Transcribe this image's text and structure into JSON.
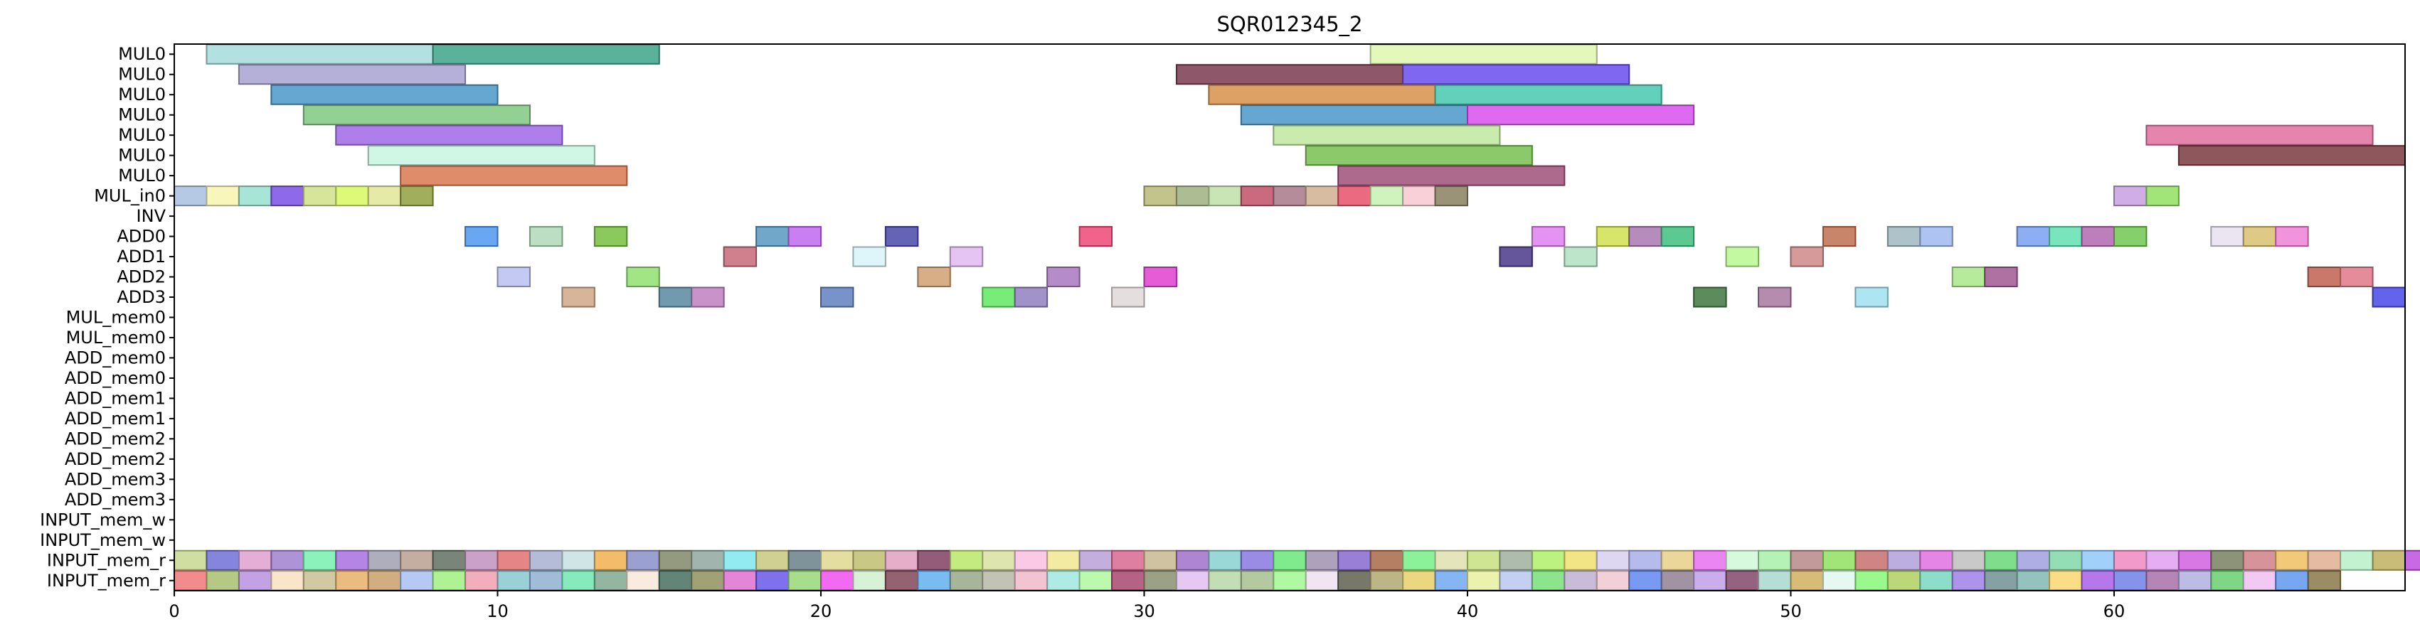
{
  "chart_data": {
    "type": "gantt",
    "title": "SQR012345_2",
    "xlim": [
      0,
      69
    ],
    "xticks": [
      0,
      10,
      20,
      30,
      40,
      50,
      60
    ],
    "rows": [
      "MUL0",
      "MUL0",
      "MUL0",
      "MUL0",
      "MUL0",
      "MUL0",
      "MUL0",
      "MUL_in0",
      "INV",
      "ADD0",
      "ADD1",
      "ADD2",
      "ADD3",
      "MUL_mem0",
      "MUL_mem0",
      "ADD_mem0",
      "ADD_mem0",
      "ADD_mem1",
      "ADD_mem1",
      "ADD_mem2",
      "ADD_mem2",
      "ADD_mem3",
      "ADD_mem3",
      "INPUT_mem_w",
      "INPUT_mem_w",
      "INPUT_mem_r",
      "INPUT_mem_r"
    ],
    "tasks": [
      {
        "row": 0,
        "start": 1,
        "end": 8,
        "color": "#a6dcdc"
      },
      {
        "row": 0,
        "start": 8,
        "end": 15,
        "color": "#3ea58a"
      },
      {
        "row": 0,
        "start": 37,
        "end": 44,
        "color": "#e0f7b0"
      },
      {
        "row": 1,
        "start": 2,
        "end": 9,
        "color": "#a8a2d0"
      },
      {
        "row": 1,
        "start": 31,
        "end": 38,
        "color": "#7a3a50"
      },
      {
        "row": 1,
        "start": 38,
        "end": 45,
        "color": "#6a4cf0"
      },
      {
        "row": 2,
        "start": 3,
        "end": 10,
        "color": "#4a98c8"
      },
      {
        "row": 2,
        "start": 32,
        "end": 39,
        "color": "#d8904a"
      },
      {
        "row": 2,
        "start": 39,
        "end": 46,
        "color": "#48c8b0"
      },
      {
        "row": 3,
        "start": 4,
        "end": 11,
        "color": "#80c880"
      },
      {
        "row": 3,
        "start": 33,
        "end": 40,
        "color": "#4a98c8"
      },
      {
        "row": 3,
        "start": 40,
        "end": 47,
        "color": "#d850f0"
      },
      {
        "row": 4,
        "start": 5,
        "end": 12,
        "color": "#a068e8"
      },
      {
        "row": 4,
        "start": 34,
        "end": 41,
        "color": "#c0e8a0"
      },
      {
        "row": 4,
        "start": 61,
        "end": 68,
        "color": "#e070a0"
      },
      {
        "row": 5,
        "start": 6,
        "end": 13,
        "color": "#c8f4e0"
      },
      {
        "row": 5,
        "start": 35,
        "end": 42,
        "color": "#78c050"
      },
      {
        "row": 5,
        "start": 62,
        "end": 69,
        "color": "#7a3a40"
      },
      {
        "row": 6,
        "start": 7,
        "end": 14,
        "color": "#d87850"
      },
      {
        "row": 6,
        "start": 36,
        "end": 43,
        "color": "#a05078"
      },
      {
        "row": 7,
        "start": 0,
        "end": 1,
        "color": "#a8c0e0"
      },
      {
        "row": 7,
        "start": 1,
        "end": 2,
        "color": "#f8f4b0"
      },
      {
        "row": 7,
        "start": 2,
        "end": 3,
        "color": "#98e0d0"
      },
      {
        "row": 7,
        "start": 3,
        "end": 4,
        "color": "#7a50e8"
      },
      {
        "row": 7,
        "start": 4,
        "end": 5,
        "color": "#d0e088"
      },
      {
        "row": 7,
        "start": 5,
        "end": 6,
        "color": "#d8f860"
      },
      {
        "row": 7,
        "start": 6,
        "end": 7,
        "color": "#e0e898"
      },
      {
        "row": 7,
        "start": 7,
        "end": 8,
        "color": "#90a040"
      },
      {
        "row": 7,
        "start": 30,
        "end": 31,
        "color": "#b8b878"
      },
      {
        "row": 7,
        "start": 31,
        "end": 32,
        "color": "#a0b080"
      },
      {
        "row": 7,
        "start": 32,
        "end": 33,
        "color": "#c0e0a8"
      },
      {
        "row": 7,
        "start": 33,
        "end": 34,
        "color": "#c05068"
      },
      {
        "row": 7,
        "start": 34,
        "end": 35,
        "color": "#a87888"
      },
      {
        "row": 7,
        "start": 35,
        "end": 36,
        "color": "#d0b090"
      },
      {
        "row": 7,
        "start": 36,
        "end": 37,
        "color": "#e85068"
      },
      {
        "row": 7,
        "start": 37,
        "end": 38,
        "color": "#c8f0b0"
      },
      {
        "row": 7,
        "start": 38,
        "end": 39,
        "color": "#f8c8d0"
      },
      {
        "row": 7,
        "start": 39,
        "end": 40,
        "color": "#888060"
      },
      {
        "row": 7,
        "start": 60,
        "end": 61,
        "color": "#c8a0e0"
      },
      {
        "row": 7,
        "start": 61,
        "end": 62,
        "color": "#90e060"
      },
      {
        "row": 9,
        "start": 9,
        "end": 10,
        "color": "#5098f0"
      },
      {
        "row": 9,
        "start": 11,
        "end": 12,
        "color": "#b0d8b8"
      },
      {
        "row": 9,
        "start": 13,
        "end": 14,
        "color": "#78c040"
      },
      {
        "row": 9,
        "start": 18,
        "end": 19,
        "color": "#5898c0"
      },
      {
        "row": 9,
        "start": 19,
        "end": 20,
        "color": "#c068f0"
      },
      {
        "row": 9,
        "start": 22,
        "end": 23,
        "color": "#4a48a8"
      },
      {
        "row": 9,
        "start": 28,
        "end": 29,
        "color": "#f04878"
      },
      {
        "row": 9,
        "start": 42,
        "end": 43,
        "color": "#e080f0"
      },
      {
        "row": 9,
        "start": 44,
        "end": 45,
        "color": "#d0e050"
      },
      {
        "row": 9,
        "start": 45,
        "end": 46,
        "color": "#a878b0"
      },
      {
        "row": 9,
        "start": 46,
        "end": 47,
        "color": "#40c080"
      },
      {
        "row": 9,
        "start": 51,
        "end": 52,
        "color": "#c07050"
      },
      {
        "row": 9,
        "start": 53,
        "end": 54,
        "color": "#a0b8c0"
      },
      {
        "row": 9,
        "start": 54,
        "end": 55,
        "color": "#a0b8f0"
      },
      {
        "row": 9,
        "start": 57,
        "end": 58,
        "color": "#78a0f0"
      },
      {
        "row": 9,
        "start": 58,
        "end": 59,
        "color": "#60e0b0"
      },
      {
        "row": 9,
        "start": 59,
        "end": 60,
        "color": "#b068b0"
      },
      {
        "row": 9,
        "start": 60,
        "end": 61,
        "color": "#70c850"
      },
      {
        "row": 9,
        "start": 63,
        "end": 64,
        "color": "#e8e0f0"
      },
      {
        "row": 9,
        "start": 64,
        "end": 65,
        "color": "#d8c070"
      },
      {
        "row": 9,
        "start": 65,
        "end": 66,
        "color": "#f080d8"
      },
      {
        "row": 10,
        "start": 17,
        "end": 18,
        "color": "#c86878"
      },
      {
        "row": 10,
        "start": 21,
        "end": 22,
        "color": "#d8f4f8"
      },
      {
        "row": 10,
        "start": 24,
        "end": 25,
        "color": "#e0b8f0"
      },
      {
        "row": 10,
        "start": 41,
        "end": 42,
        "color": "#4a3888"
      },
      {
        "row": 10,
        "start": 43,
        "end": 44,
        "color": "#b0e0c0"
      },
      {
        "row": 10,
        "start": 48,
        "end": 49,
        "color": "#b8f890"
      },
      {
        "row": 10,
        "start": 50,
        "end": 51,
        "color": "#d08888"
      },
      {
        "row": 11,
        "start": 10,
        "end": 11,
        "color": "#b8c0f0"
      },
      {
        "row": 11,
        "start": 14,
        "end": 15,
        "color": "#90e070"
      },
      {
        "row": 11,
        "start": 23,
        "end": 24,
        "color": "#d0a070"
      },
      {
        "row": 11,
        "start": 27,
        "end": 28,
        "color": "#a878c0"
      },
      {
        "row": 11,
        "start": 30,
        "end": 31,
        "color": "#e040d0"
      },
      {
        "row": 11,
        "start": 55,
        "end": 56,
        "color": "#a8e888"
      },
      {
        "row": 11,
        "start": 56,
        "end": 57,
        "color": "#a05890"
      },
      {
        "row": 11,
        "start": 66,
        "end": 67,
        "color": "#c06050"
      },
      {
        "row": 11,
        "start": 67,
        "end": 68,
        "color": "#e07888"
      },
      {
        "row": 12,
        "start": 12,
        "end": 13,
        "color": "#d0a888"
      },
      {
        "row": 12,
        "start": 15,
        "end": 16,
        "color": "#5888a0"
      },
      {
        "row": 12,
        "start": 16,
        "end": 17,
        "color": "#c080c0"
      },
      {
        "row": 12,
        "start": 20,
        "end": 21,
        "color": "#6080c0"
      },
      {
        "row": 12,
        "start": 25,
        "end": 26,
        "color": "#60e860"
      },
      {
        "row": 12,
        "start": 26,
        "end": 27,
        "color": "#9080c0"
      },
      {
        "row": 12,
        "start": 29,
        "end": 30,
        "color": "#e0d8d8"
      },
      {
        "row": 12,
        "start": 47,
        "end": 48,
        "color": "#407840"
      },
      {
        "row": 12,
        "start": 49,
        "end": 50,
        "color": "#a878a0"
      },
      {
        "row": 12,
        "start": 52,
        "end": 53,
        "color": "#a0e0f0"
      },
      {
        "row": 12,
        "start": 68,
        "end": 69,
        "color": "#4848e8"
      }
    ],
    "row_fill": {
      "25": [
        "#c8d890",
        "#7070d8",
        "#e0a0d0",
        "#a080d0",
        "#78f0b0",
        "#a870e0",
        "#a0a0b0",
        "#b8a090",
        "#607060",
        "#c090c0",
        "#e07070",
        "#a8b0d0",
        "#c8e0e0",
        "#f0b050",
        "#8890c8",
        "#808868",
        "#90a8a0",
        "#80e8f0",
        "#c8c880",
        "#688088",
        "#e0d890",
        "#c0c070",
        "#e0a0c0",
        "#804060",
        "#b8e868",
        "#d8e0a0",
        "#f8c0e0",
        "#f0e890",
        "#b8a0d8",
        "#d86890",
        "#c8b890",
        "#a070c8",
        "#88d0d0",
        "#8878e0",
        "#68e878",
        "#a090b0",
        "#8868d0",
        "#a86848",
        "#78f088",
        "#e0e0b0",
        "#c8e080",
        "#a0b0a0",
        "#b0f068",
        "#f0e070",
        "#d8d0f0",
        "#a8b0e8",
        "#e8d088",
        "#e870f0",
        "#d0f8d8",
        "#a8f0a8",
        "#b88888",
        "#90e060",
        "#c87070",
        "#b0a0d8",
        "#e070e0",
        "#c0c0c0",
        "#68d878",
        "#a0a0e0",
        "#80d8a8",
        "#90c8f8",
        "#f088c0",
        "#e0a0f0",
        "#d060e0",
        "#788060",
        "#d08088",
        "#f0c060",
        "#e0b090",
        "#b8f0c8",
        "#c0b060",
        "#c050e0",
        "#7088d8"
      ],
      "26": [
        "#f07878",
        "#a8c070",
        "#b890e0",
        "#f8e0c0",
        "#c8c090",
        "#e8b068",
        "#c8a068",
        "#a8c0f0",
        "#a0f080",
        "#f0a0b0",
        "#88c8d0",
        "#90b0d0",
        "#70e8b0",
        "#80a890",
        "#f8e8d8",
        "#487060",
        "#909060",
        "#e070d0",
        "#6858e8",
        "#98d878",
        "#f050f0",
        "#d0f0d0",
        "#804858",
        "#60b0f0",
        "#98a888",
        "#b8b8a8",
        "#f0b8c8",
        "#a0e8e0",
        "#b0f8a0",
        "#a84870",
        "#889070",
        "#e0c0f0",
        "#b8d8a8",
        "#a8c090",
        "#a0f890",
        "#f0e0f0",
        "#606050",
        "#b0a870",
        "#e8d068",
        "#70a8f0",
        "#e8f0a0",
        "#b8c8f0",
        "#78e078",
        "#c0b0d0",
        "#f0c8d0",
        "#6088f0",
        "#908090",
        "#c0a0e8",
        "#804868",
        "#a8d8d0",
        "#d0b060",
        "#e0f8f0",
        "#88f878",
        "#b0d060",
        "#78d8c0",
        "#a080e8",
        "#709090",
        "#80b8b0",
        "#f8d870",
        "#a860e8",
        "#7080e8",
        "#a870a8",
        "#b0b0e0",
        "#68d070",
        "#f0c0f0",
        "#6098f0",
        "#88784a"
      ]
    }
  }
}
